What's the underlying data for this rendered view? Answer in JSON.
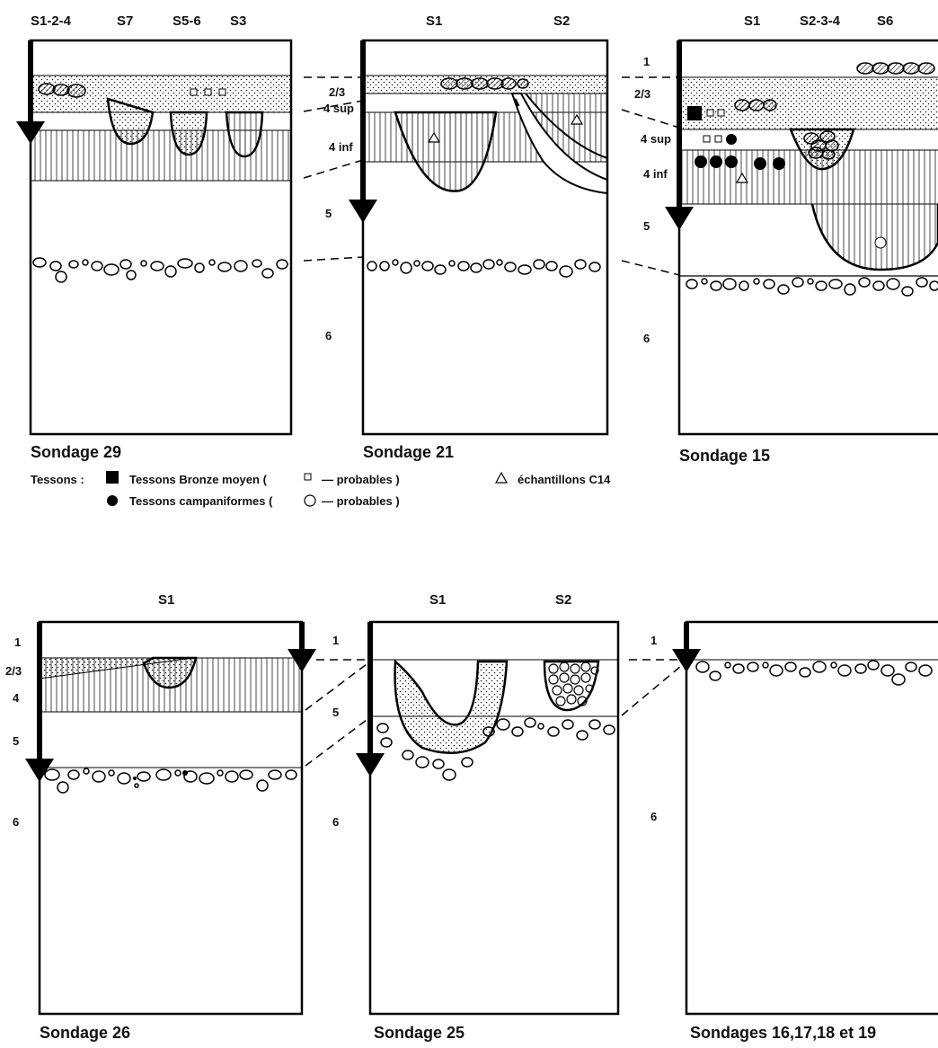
{
  "sondages": {
    "s29": {
      "caption": "Sondage 29",
      "columns": [
        "S1-2-4",
        "S7",
        "S5-6",
        "S3"
      ]
    },
    "s21": {
      "caption": "Sondage 21",
      "columns": [
        "S1",
        "S2"
      ],
      "layers": [
        "2/3",
        "4 sup",
        "4 inf",
        "5",
        "6"
      ]
    },
    "s15": {
      "caption": "Sondage 15",
      "columns": [
        "S1",
        "S2-3-4",
        "S6"
      ],
      "layers": [
        "1",
        "2/3",
        "4 sup",
        "4 inf",
        "5",
        "6"
      ]
    },
    "s26": {
      "caption": "Sondage 26",
      "columns": [
        "S1"
      ],
      "layers": [
        "1",
        "2/3",
        "4",
        "5",
        "6"
      ]
    },
    "s25": {
      "caption": "Sondage 25",
      "columns": [
        "S1",
        "S2"
      ],
      "layers": [
        "1",
        "5",
        "6"
      ]
    },
    "s16": {
      "caption": "Sondages  16,17,18 et 19",
      "layers": [
        "1",
        "6"
      ]
    }
  },
  "legend": {
    "prefix": "Tessons :",
    "bronze_label": "Tessons  Bronze moyen  (",
    "bronze_probables": "—  probables )",
    "campani_label": "Tessons  campaniformes (",
    "campani_probables": "—  probables )",
    "c14_label": "échantillons  C14"
  }
}
